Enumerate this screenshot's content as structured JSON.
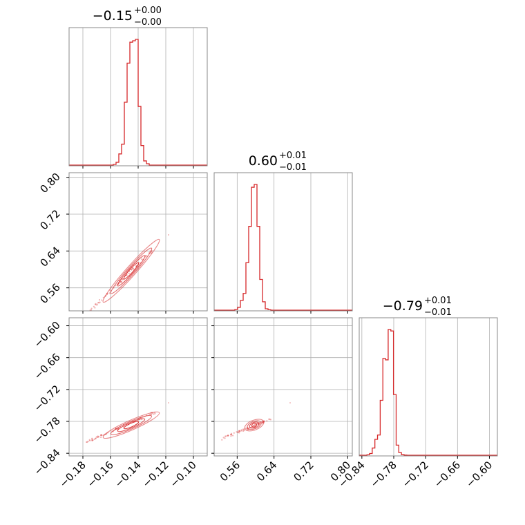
{
  "chart_data": {
    "type": "corner",
    "color": "#d62728",
    "params": [
      {
        "title": "−0.15",
        "title_plus": "+0.00",
        "title_minus": "−0.00",
        "median": -0.145,
        "range": [
          -0.19,
          -0.09
        ],
        "ticks": [
          -0.18,
          -0.16,
          -0.14,
          -0.12,
          -0.1
        ],
        "tick_labels": [
          "−0.18",
          "−0.16",
          "−0.14",
          "−0.12",
          "−0.10"
        ],
        "hist": {
          "edges": [
            -0.158,
            -0.156,
            -0.154,
            -0.152,
            -0.15,
            -0.148,
            -0.146,
            -0.144,
            -0.142,
            -0.14,
            -0.138,
            -0.136,
            -0.134,
            -0.132
          ],
          "counts": [
            0.005,
            0.02,
            0.08,
            0.15,
            0.45,
            0.73,
            0.88,
            0.89,
            0.9,
            0.42,
            0.14,
            0.03,
            0.01
          ]
        }
      },
      {
        "title": "0.60",
        "title_plus": "+0.01",
        "title_minus": "−0.01",
        "median": 0.6,
        "range": [
          0.51,
          0.81
        ],
        "ticks": [
          0.56,
          0.64,
          0.72,
          0.8
        ],
        "tick_labels": [
          "0.56",
          "0.64",
          "0.72",
          "0.80"
        ],
        "hist": {
          "edges": [
            0.555,
            0.561,
            0.567,
            0.573,
            0.579,
            0.585,
            0.591,
            0.597,
            0.603,
            0.609,
            0.615,
            0.621,
            0.627,
            0.633
          ],
          "counts": [
            0.005,
            0.02,
            0.07,
            0.12,
            0.34,
            0.6,
            0.88,
            0.9,
            0.6,
            0.22,
            0.06,
            0.01,
            0.003
          ]
        }
      },
      {
        "title": "−0.79",
        "title_plus": "+0.01",
        "title_minus": "−0.01",
        "median": -0.785,
        "range": [
          -0.845,
          -0.585
        ],
        "ticks": [
          -0.84,
          -0.78,
          -0.72,
          -0.66,
          -0.6
        ],
        "tick_labels": [
          "−0.84",
          "−0.78",
          "−0.72",
          "−0.66",
          "−0.60"
        ],
        "hist": {
          "edges": [
            -0.8305,
            -0.8255,
            -0.8205,
            -0.8155,
            -0.8105,
            -0.8055,
            -0.8005,
            -0.7955,
            -0.7905,
            -0.7855,
            -0.7805,
            -0.7755,
            -0.7705,
            -0.7655,
            -0.7605,
            -0.7555
          ],
          "counts": [
            0.003,
            0.012,
            0.05,
            0.11,
            0.14,
            0.38,
            0.67,
            0.66,
            0.87,
            0.86,
            0.42,
            0.07,
            0.018,
            0.004,
            0.001
          ]
        }
      }
    ],
    "pairs": [
      {
        "x_param": 0,
        "y_param": 1,
        "y_ticks": [
          0.56,
          0.64,
          0.72,
          0.8
        ],
        "y_tick_labels": [
          "0.56",
          "0.64",
          "0.72",
          "0.80"
        ],
        "center": [
          -0.145,
          0.597
        ],
        "slope": 3.35,
        "trend": [
          [
            -0.175,
            0.51
          ],
          [
            -0.13,
            0.64
          ]
        ],
        "outlier": [
          -0.118,
          0.675
        ]
      },
      {
        "x_param": 0,
        "y_param": 2,
        "y_ticks": [
          -0.84,
          -0.78,
          -0.72,
          -0.66,
          -0.6
        ],
        "y_tick_labels": [
          "−0.84",
          "−0.78",
          "−0.72",
          "−0.66",
          "−0.60"
        ],
        "center": [
          -0.145,
          -0.787
        ],
        "slope": 1.15,
        "trend": [
          [
            -0.178,
            -0.82
          ],
          [
            -0.128,
            -0.763
          ]
        ],
        "outlier": [
          -0.118,
          -0.745
        ]
      },
      {
        "x_param": 1,
        "y_param": 2,
        "y_ticks": [],
        "y_tick_labels": [],
        "center": [
          0.597,
          -0.787
        ],
        "slope": 0.34,
        "trend": [
          [
            0.52,
            -0.815
          ],
          [
            0.635,
            -0.775
          ]
        ],
        "outlier": [
          0.675,
          -0.745
        ]
      }
    ],
    "grid": true
  }
}
